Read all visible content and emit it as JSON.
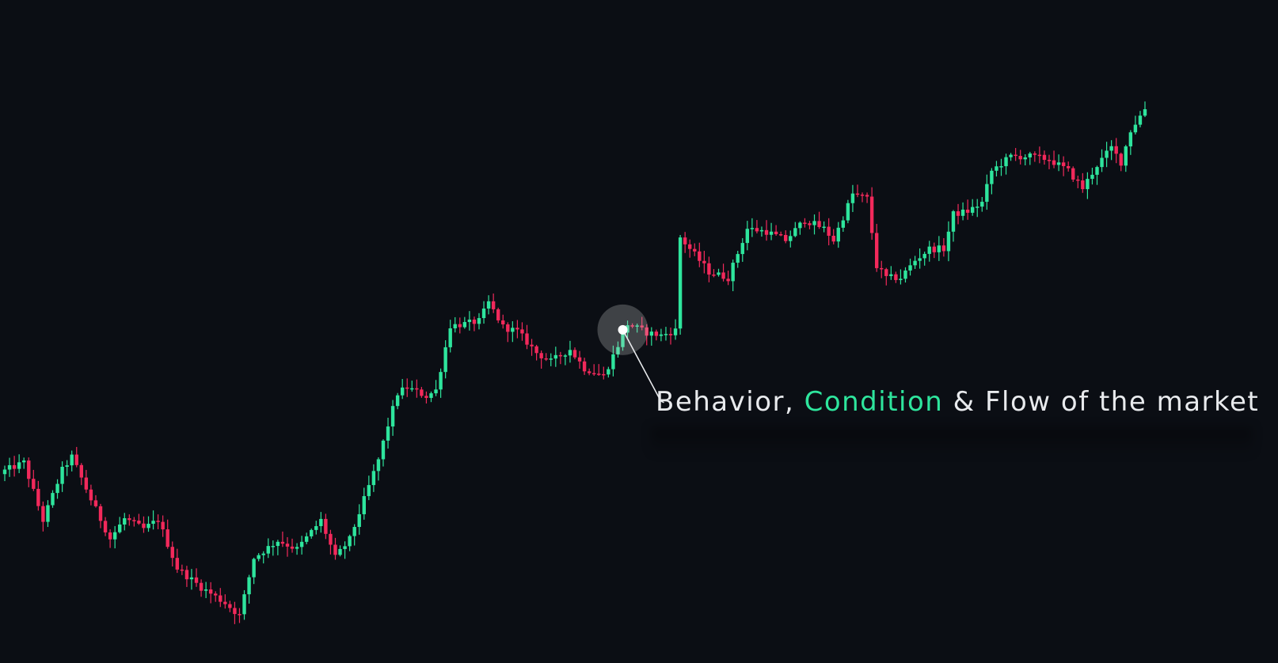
{
  "colors": {
    "background": "#0b0e14",
    "up": "#2ee59d",
    "down": "#f2295b",
    "text": "#e8eaed",
    "highlight": "#2ee59d",
    "marker": "#ffffff"
  },
  "annotation": {
    "part1": "Behavior, ",
    "part2": "Condition",
    "part3": " & Flow of the market",
    "anchor_index": 129
  },
  "chart_data": {
    "type": "candlestick",
    "title": "",
    "xlabel": "",
    "ylabel": "",
    "grid": false,
    "axes_visible": false,
    "ylim": [
      0,
      100
    ],
    "price_path": [
      [
        0,
        28.1
      ],
      [
        4,
        29.5
      ],
      [
        8,
        19.5
      ],
      [
        12,
        28.2
      ],
      [
        14,
        30.5
      ],
      [
        18,
        23.1
      ],
      [
        22,
        16.3
      ],
      [
        25,
        19.8
      ],
      [
        29,
        18.0
      ],
      [
        32,
        19.6
      ],
      [
        36,
        11.2
      ],
      [
        41,
        7.9
      ],
      [
        46,
        5.2
      ],
      [
        49,
        3.0
      ],
      [
        52,
        13.0
      ],
      [
        57,
        16.0
      ],
      [
        61,
        14.5
      ],
      [
        66,
        19.5
      ],
      [
        69,
        13.0
      ],
      [
        72,
        16.2
      ],
      [
        78,
        30.0
      ],
      [
        80,
        36.0
      ],
      [
        82,
        41.5
      ],
      [
        84,
        42.5
      ],
      [
        88,
        41.0
      ],
      [
        90,
        42.0
      ],
      [
        93,
        53.2
      ],
      [
        96,
        53.5
      ],
      [
        99,
        54.0
      ],
      [
        101,
        57.2
      ],
      [
        104,
        53.0
      ],
      [
        107,
        52.2
      ],
      [
        111,
        48.5
      ],
      [
        114,
        47.0
      ],
      [
        118,
        49.1
      ],
      [
        121,
        45.8
      ],
      [
        125,
        44.5
      ],
      [
        127,
        48.0
      ],
      [
        130,
        53.5
      ],
      [
        134,
        52.0
      ],
      [
        137,
        51.5
      ],
      [
        140,
        52.4
      ],
      [
        141,
        68.5
      ],
      [
        147,
        62.5
      ],
      [
        151,
        61.5
      ],
      [
        155,
        70.0
      ],
      [
        159,
        69.5
      ],
      [
        163,
        68.0
      ],
      [
        167,
        71.5
      ],
      [
        171,
        70.0
      ],
      [
        173,
        68.0
      ],
      [
        175,
        72.0
      ],
      [
        177,
        76.0
      ],
      [
        180,
        75.2
      ],
      [
        182,
        63.5
      ],
      [
        184,
        61.5
      ],
      [
        187,
        61.5
      ],
      [
        190,
        64.5
      ],
      [
        193,
        66.5
      ],
      [
        196,
        66.5
      ],
      [
        198,
        72.5
      ],
      [
        201,
        73.0
      ],
      [
        204,
        74.5
      ],
      [
        206,
        80.0
      ],
      [
        210,
        82.5
      ],
      [
        214,
        82.5
      ],
      [
        218,
        82.0
      ],
      [
        222,
        80.0
      ],
      [
        225,
        77.0
      ],
      [
        228,
        81.0
      ],
      [
        231,
        84.0
      ],
      [
        233,
        81.5
      ],
      [
        235,
        87.0
      ],
      [
        238,
        90.8
      ]
    ],
    "candle_count": 239
  }
}
